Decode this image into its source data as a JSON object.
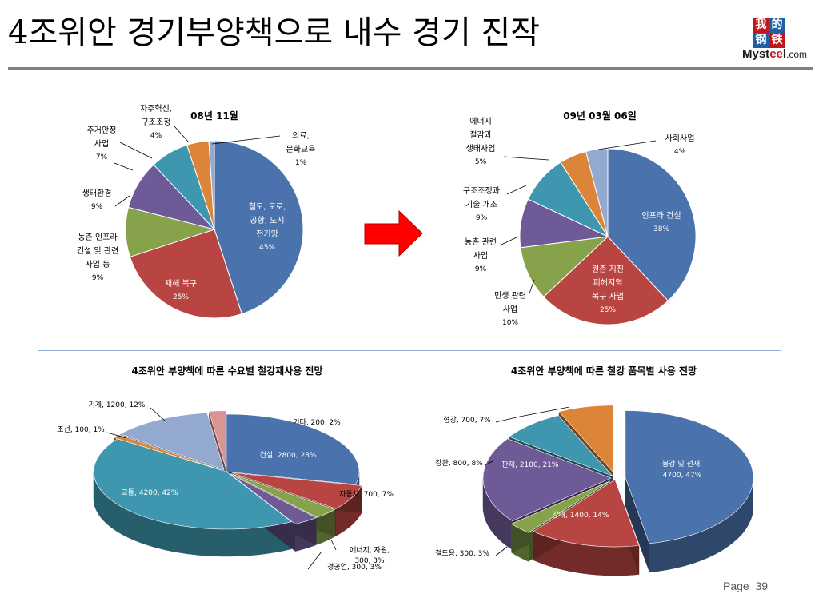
{
  "slide": {
    "title": "4조위안 경기부양책으로 내수 경기 진작",
    "page_label": "Page",
    "page_number": "39"
  },
  "logo": {
    "chars": [
      "我",
      "的",
      "钢",
      "铁"
    ],
    "brand_prefix": "Myst",
    "brand_ee": "ee",
    "brand_suffix": "l",
    "brand_domain": ".com",
    "colors": [
      "#c0181b",
      "#1f5fa8",
      "#1f5fa8",
      "#c0181b"
    ]
  },
  "arrow": {
    "color": "#ff0000"
  },
  "chart_data": [
    {
      "type": "pie",
      "title": "08년 11월",
      "slices": [
        {
          "label": [
            "철도, 도로,",
            "공항, 도시",
            "전기망"
          ],
          "pct": "45%",
          "value": 45,
          "color": "#4a72ad",
          "text_color": "#ffffff"
        },
        {
          "label": [
            "재해 복구"
          ],
          "pct": "25%",
          "value": 25,
          "color": "#b84542",
          "text_color": "#ffffff"
        },
        {
          "label": [
            "농촌 인프라",
            "건설 및 관련",
            "사업 등"
          ],
          "pct": "9%",
          "value": 9,
          "color": "#86a34b",
          "text_color": "#000000"
        },
        {
          "label": [
            "생태환경"
          ],
          "pct": "9%",
          "value": 9,
          "color": "#6e5a96",
          "text_color": "#000000"
        },
        {
          "label": [
            "주거안정",
            "사업"
          ],
          "pct": "7%",
          "value": 7,
          "color": "#3e97ae",
          "text_color": "#000000"
        },
        {
          "label": [
            "자주혁신,",
            "구조조정"
          ],
          "pct": "4%",
          "value": 4,
          "color": "#dc8538",
          "text_color": "#000000"
        },
        {
          "label": [
            "의료,",
            "문화교육"
          ],
          "pct": "1%",
          "value": 1,
          "color": "#93a9cf",
          "text_color": "#000000"
        }
      ]
    },
    {
      "type": "pie",
      "title": "09년 03월 06일",
      "slices": [
        {
          "label": [
            "인프라 건설"
          ],
          "pct": "38%",
          "value": 38,
          "color": "#4a72ad",
          "text_color": "#ffffff"
        },
        {
          "label": [
            "원촌 지진",
            "피해지역",
            "복구 사업"
          ],
          "pct": "25%",
          "value": 25,
          "color": "#b84542",
          "text_color": "#ffffff"
        },
        {
          "label": [
            "민생 관련",
            "사업"
          ],
          "pct": "10%",
          "value": 10,
          "color": "#86a34b",
          "text_color": "#000000"
        },
        {
          "label": [
            "농촌 관련",
            "사업"
          ],
          "pct": "9%",
          "value": 9,
          "color": "#6e5a96",
          "text_color": "#000000"
        },
        {
          "label": [
            "구조조정과",
            "기술 개조"
          ],
          "pct": "9%",
          "value": 9,
          "color": "#3e97ae",
          "text_color": "#000000"
        },
        {
          "label": [
            "에너지",
            "절감과",
            "생태사업"
          ],
          "pct": "5%",
          "value": 5,
          "color": "#dc8538",
          "text_color": "#000000"
        },
        {
          "label": [
            "사회사업"
          ],
          "pct": "4%",
          "value": 4,
          "color": "#93a9cf",
          "text_color": "#000000"
        }
      ]
    },
    {
      "type": "pie",
      "title": "4조위안  부양책에 따른 수요별 철강재사용 전망",
      "slices": [
        {
          "label": "건설",
          "value": 2800,
          "pct": "28%",
          "text": "건설, 2800, 28%",
          "color": "#4a72ad",
          "text_color": "#ffffff"
        },
        {
          "label": "자동차",
          "value": 700,
          "pct": "7%",
          "text": "자동차, 700, 7%",
          "color": "#b84542",
          "text_color": "#000000"
        },
        {
          "label": "경공업",
          "value": 300,
          "pct": "3%",
          "text": "경공업, 300, 3%",
          "color": "#86a34b",
          "text_color": "#000000"
        },
        {
          "label": "에너지, 자원,",
          "value": 300,
          "pct": "3%",
          "text": "에너지, 자원,",
          "text2": "300, 3%",
          "color": "#6e5a96",
          "text_color": "#000000"
        },
        {
          "label": "교통",
          "value": 4200,
          "pct": "42%",
          "text": "교통, 4200, 42%",
          "color": "#3e97ae",
          "text_color": "#ffffff"
        },
        {
          "label": "조선",
          "value": 100,
          "pct": "1%",
          "text": "조선, 100, 1%",
          "color": "#dc8538",
          "text_color": "#000000"
        },
        {
          "label": "기계",
          "value": 1200,
          "pct": "12%",
          "text": "기계, 1200, 12%",
          "color": "#93a9cf",
          "text_color": "#000000"
        },
        {
          "label": "기타",
          "value": 200,
          "pct": "2%",
          "text": "기타, 200, 2%",
          "color": "#d99594",
          "text_color": "#000000"
        }
      ]
    },
    {
      "type": "pie",
      "title": "4조위안 부양책에 따른 철강 품목별 사용 전망",
      "slices": [
        {
          "label": "봉강 및 선재",
          "value": 4700,
          "pct": "47%",
          "text": "봉강 및 선재,",
          "text2": "4700, 47%",
          "color": "#4a72ad",
          "text_color": "#ffffff"
        },
        {
          "label": "강대",
          "value": 1400,
          "pct": "14%",
          "text": "강대, 1400, 14%",
          "color": "#b84542",
          "text_color": "#ffffff"
        },
        {
          "label": "철도용",
          "value": 300,
          "pct": "3%",
          "text": "철도용, 300, 3%",
          "color": "#86a34b",
          "text_color": "#000000"
        },
        {
          "label": "판재",
          "value": 2100,
          "pct": "21%",
          "text": "판재, 2100, 21%",
          "color": "#6e5a96",
          "text_color": "#ffffff"
        },
        {
          "label": "강관",
          "value": 800,
          "pct": "8%",
          "text": "강관, 800, 8%",
          "color": "#3e97ae",
          "text_color": "#000000"
        },
        {
          "label": "형강",
          "value": 700,
          "pct": "7%",
          "text": "형강, 700, 7%",
          "color": "#dc8538",
          "text_color": "#000000"
        }
      ]
    }
  ]
}
